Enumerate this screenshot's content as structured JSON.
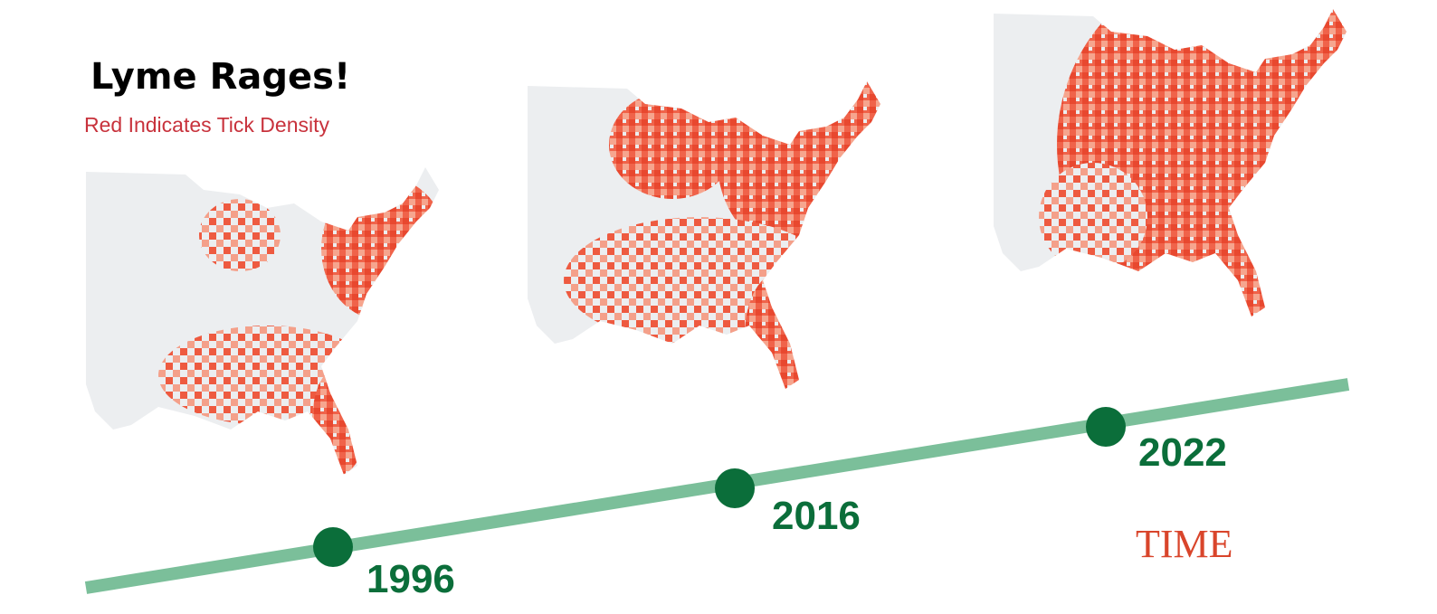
{
  "header": {
    "title": "Lyme Rages!",
    "subtitle": "Red Indicates Tick Density"
  },
  "timeline": [
    {
      "year": "1996"
    },
    {
      "year": "2016"
    },
    {
      "year": "2022"
    }
  ],
  "brand": "TIME"
}
